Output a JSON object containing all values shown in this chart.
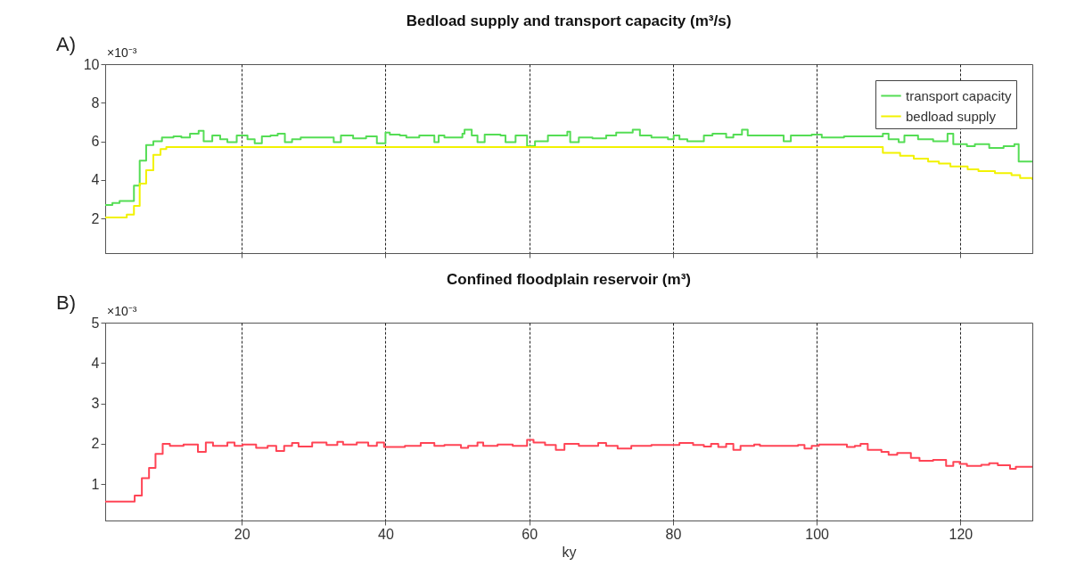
{
  "chart_data": [
    {
      "type": "step",
      "title": "Bedload supply and transport capacity (m³/s)",
      "annotations": [
        "A)",
        "×10⁻³"
      ],
      "xlim": [
        1,
        130
      ],
      "xticks": [
        20,
        40,
        60,
        80,
        100,
        120
      ],
      "ylim": [
        0.2,
        10
      ],
      "yticks": [
        2,
        4,
        6,
        8,
        10
      ],
      "grid": "x",
      "legend": "top right",
      "tick_labels": "y",
      "line_style": "solid",
      "series": [
        {
          "name": "transport capacity",
          "color": "#55dd55",
          "x": [
            1,
            2,
            3,
            5,
            5.8,
            6.7,
            7.7,
            8.9,
            10.5,
            11.6,
            12.8,
            14,
            14.7,
            15.9,
            17,
            18,
            19.3,
            20.8,
            21.8,
            22.8,
            24,
            25,
            26,
            27,
            28.2,
            32.8,
            33.8,
            35.5,
            37.3,
            38.8,
            40,
            40.6,
            42,
            42.9,
            44.7,
            46.8,
            47.4,
            48.2,
            50.7,
            51,
            52,
            52.8,
            53.8,
            56,
            56.7,
            58.1,
            59.7,
            60.8,
            62.6,
            65.3,
            65.7,
            66.9,
            68.8,
            70.7,
            72.1,
            74.4,
            75.4,
            77,
            79.3,
            80.1,
            80.9,
            82,
            84.3,
            85.5,
            87.4,
            88.4,
            89.6,
            90.4,
            95.4,
            96.4,
            99.3,
            100.7,
            103.8,
            109.2,
            110,
            111.4,
            112.2,
            114.1,
            116.2,
            118.2,
            119,
            120.9,
            122,
            124,
            126,
            127.5,
            128.1,
            130
          ],
          "values": [
            2.7,
            2.8,
            2.9,
            3.7,
            5.0,
            5.8,
            6.0,
            6.2,
            6.25,
            6.2,
            6.4,
            6.55,
            6.0,
            6.3,
            6.1,
            5.95,
            6.3,
            6.1,
            5.9,
            6.25,
            6.3,
            6.4,
            5.95,
            6.1,
            6.2,
            5.95,
            6.3,
            6.15,
            6.25,
            5.9,
            6.45,
            6.35,
            6.3,
            6.2,
            6.3,
            5.95,
            6.3,
            6.2,
            6.4,
            6.6,
            6.3,
            5.95,
            6.35,
            6.3,
            5.95,
            6.3,
            5.75,
            6.0,
            6.3,
            6.5,
            5.95,
            6.2,
            6.15,
            6.3,
            6.45,
            6.6,
            6.3,
            6.2,
            6.1,
            6.3,
            6.1,
            6.0,
            6.3,
            6.4,
            6.2,
            6.35,
            6.6,
            6.3,
            6.0,
            6.3,
            6.35,
            6.2,
            6.25,
            6.4,
            6.1,
            5.95,
            6.3,
            6.1,
            6.0,
            6.4,
            5.85,
            5.75,
            5.85,
            5.65,
            5.75,
            5.85,
            4.95,
            4.95
          ]
        },
        {
          "name": "bedload supply",
          "color": "#f2f200",
          "x": [
            1,
            4,
            5,
            5.8,
            6.7,
            7.7,
            8.7,
            9.5,
            107.7,
            109.2,
            111.6,
            113.5,
            115.5,
            117,
            118.6,
            121,
            122.5,
            124.8,
            127.1,
            128.3,
            130
          ],
          "values": [
            2.05,
            2.2,
            2.65,
            3.8,
            4.5,
            5.3,
            5.6,
            5.7,
            5.7,
            5.4,
            5.25,
            5.1,
            4.95,
            4.85,
            4.7,
            4.55,
            4.45,
            4.35,
            4.25,
            4.1,
            4.0
          ]
        }
      ]
    },
    {
      "type": "step",
      "title": "Confined floodplain reservoir (m³)",
      "annotations": [
        "B)",
        "×10⁻³"
      ],
      "xlabel": "ky",
      "xlim": [
        1,
        130
      ],
      "xticks": [
        20,
        40,
        60,
        80,
        100,
        120
      ],
      "ylim": [
        0.1,
        5
      ],
      "yticks": [
        1,
        2,
        3,
        4,
        5
      ],
      "grid": "x",
      "line_style": "solid",
      "series": [
        {
          "color": "#ff4455",
          "x": [
            1,
            5.1,
            6.1,
            7.1,
            8,
            9,
            10,
            11.9,
            13.9,
            15,
            16,
            18,
            19,
            20.1,
            22,
            23.6,
            24.8,
            25.9,
            27,
            27.9,
            29.8,
            31.8,
            33.3,
            34.1,
            36,
            37.6,
            38.8,
            39.8,
            42.7,
            44.9,
            46.8,
            48.2,
            50.5,
            51.5,
            52.8,
            53.6,
            55.6,
            57.7,
            59.7,
            60.6,
            62.2,
            63.7,
            64.9,
            66.9,
            69.6,
            70.7,
            72.3,
            74.2,
            77,
            80.9,
            82.8,
            84.3,
            85.3,
            86.3,
            87.4,
            88.4,
            89.4,
            91.3,
            92.1,
            97.4,
            98.3,
            99.3,
            100.3,
            104.2,
            105.3,
            106.1,
            107.1,
            109,
            110,
            111.2,
            113.1,
            114.3,
            116.2,
            118,
            119,
            119.9,
            120.9,
            122.9,
            124,
            125.2,
            126.9,
            127.7,
            130
          ],
          "values": [
            0.57,
            0.72,
            1.15,
            1.4,
            1.75,
            2.0,
            1.95,
            1.98,
            1.8,
            2.03,
            1.95,
            2.03,
            1.95,
            1.98,
            1.9,
            1.95,
            1.82,
            1.95,
            2.02,
            1.93,
            2.03,
            1.97,
            2.05,
            1.98,
            2.03,
            1.95,
            2.03,
            1.92,
            1.95,
            2.02,
            1.95,
            1.97,
            1.9,
            1.95,
            2.03,
            1.95,
            1.98,
            1.95,
            2.1,
            2.03,
            1.97,
            1.85,
            2.0,
            1.95,
            2.02,
            1.95,
            1.88,
            1.95,
            1.97,
            2.02,
            1.97,
            1.93,
            2.0,
            1.92,
            2.0,
            1.85,
            1.95,
            1.98,
            1.95,
            1.97,
            1.88,
            1.95,
            1.98,
            1.92,
            1.95,
            2.0,
            1.85,
            1.8,
            1.73,
            1.77,
            1.65,
            1.58,
            1.6,
            1.45,
            1.55,
            1.5,
            1.45,
            1.48,
            1.52,
            1.47,
            1.38,
            1.43,
            1.43
          ]
        }
      ]
    }
  ]
}
